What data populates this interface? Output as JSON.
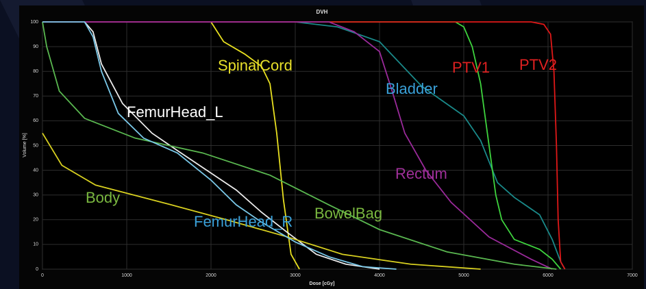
{
  "chart_data": {
    "type": "line",
    "title": "DVH",
    "xlabel": "Dose [cGy]",
    "ylabel": "Volume [%]",
    "xlim": [
      0,
      7000
    ],
    "xticks": [
      0,
      1000,
      2000,
      3000,
      4000,
      5000,
      6000,
      7000
    ],
    "ylim": [
      0,
      100
    ],
    "yticks": [
      0,
      10,
      20,
      30,
      40,
      50,
      60,
      70,
      80,
      90,
      100
    ],
    "grid": true,
    "series": [
      {
        "name": "SpinalCord",
        "color": "#e8e020",
        "label_color": "#e8e02a",
        "x": [
          0,
          2000,
          2150,
          2400,
          2600,
          2700,
          2780,
          2860,
          2950,
          3050
        ],
        "values": [
          100,
          100,
          92,
          87,
          82,
          75,
          55,
          28,
          6,
          0
        ]
      },
      {
        "name": "FemurHead_L",
        "color": "#ececec",
        "label_color": "#ffffff",
        "x": [
          0,
          500,
          600,
          700,
          950,
          1300,
          1600,
          1950,
          2300,
          2600,
          2900,
          3250,
          3600,
          4000
        ],
        "values": [
          100,
          100,
          96,
          83,
          67,
          55,
          48,
          40,
          32,
          23,
          15,
          6,
          2,
          0
        ]
      },
      {
        "name": "Bladder",
        "color": "#1a8a8a",
        "label_color": "#3aa0d8",
        "x": [
          0,
          3000,
          3500,
          4000,
          4500,
          5000,
          5200,
          5400,
          5600,
          5900,
          6050,
          6150,
          6200
        ],
        "values": [
          100,
          100,
          98,
          92,
          74,
          62,
          52,
          35,
          29,
          22,
          12,
          3,
          0
        ]
      },
      {
        "name": "PTV1",
        "color": "#3ed43e",
        "label_color": "#e02020",
        "x": [
          0,
          4900,
          5000,
          5100,
          5200,
          5300,
          5380,
          5450,
          5600,
          5900,
          6050,
          6150
        ],
        "values": [
          100,
          100,
          98,
          90,
          75,
          50,
          30,
          20,
          12,
          8,
          4,
          0
        ]
      },
      {
        "name": "PTV2",
        "color": "#e01818",
        "label_color": "#e02020",
        "x": [
          0,
          5800,
          5950,
          6030,
          6070,
          6100,
          6120,
          6150,
          6200
        ],
        "values": [
          100,
          100,
          99,
          95,
          80,
          50,
          20,
          3,
          0
        ]
      },
      {
        "name": "Rectum",
        "color": "#9a2a9a",
        "label_color": "#a0309a",
        "x": [
          0,
          3400,
          3700,
          4000,
          4150,
          4300,
          4550,
          4850,
          5300,
          5800,
          6050
        ],
        "values": [
          100,
          100,
          96,
          88,
          72,
          55,
          40,
          27,
          13,
          4,
          0
        ]
      },
      {
        "name": "BowelBag",
        "color": "#5ab850",
        "label_color": "#7ab840",
        "x": [
          0,
          50,
          200,
          500,
          1100,
          1900,
          2700,
          3400,
          4000,
          4800,
          5600,
          6100
        ],
        "values": [
          100,
          90,
          72,
          61,
          53,
          47,
          38,
          26,
          16,
          7,
          2,
          0
        ]
      },
      {
        "name": "Body",
        "color": "#d8d020",
        "label_color": "#7ab840",
        "x": [
          0,
          230,
          630,
          1530,
          2180,
          2910,
          3560,
          4370,
          5200
        ],
        "values": [
          55,
          42,
          34,
          26,
          20,
          13,
          6,
          2,
          0
        ]
      },
      {
        "name": "FemurHead_R",
        "color": "#7ac8e8",
        "label_color": "#3aa0d8",
        "x": [
          0,
          500,
          600,
          700,
          900,
          1200,
          1600,
          2000,
          2300,
          2600,
          3000,
          3400,
          3800,
          4200
        ],
        "values": [
          100,
          100,
          94,
          80,
          63,
          53,
          47,
          36,
          26,
          19,
          11,
          5,
          1,
          0
        ]
      }
    ]
  }
}
